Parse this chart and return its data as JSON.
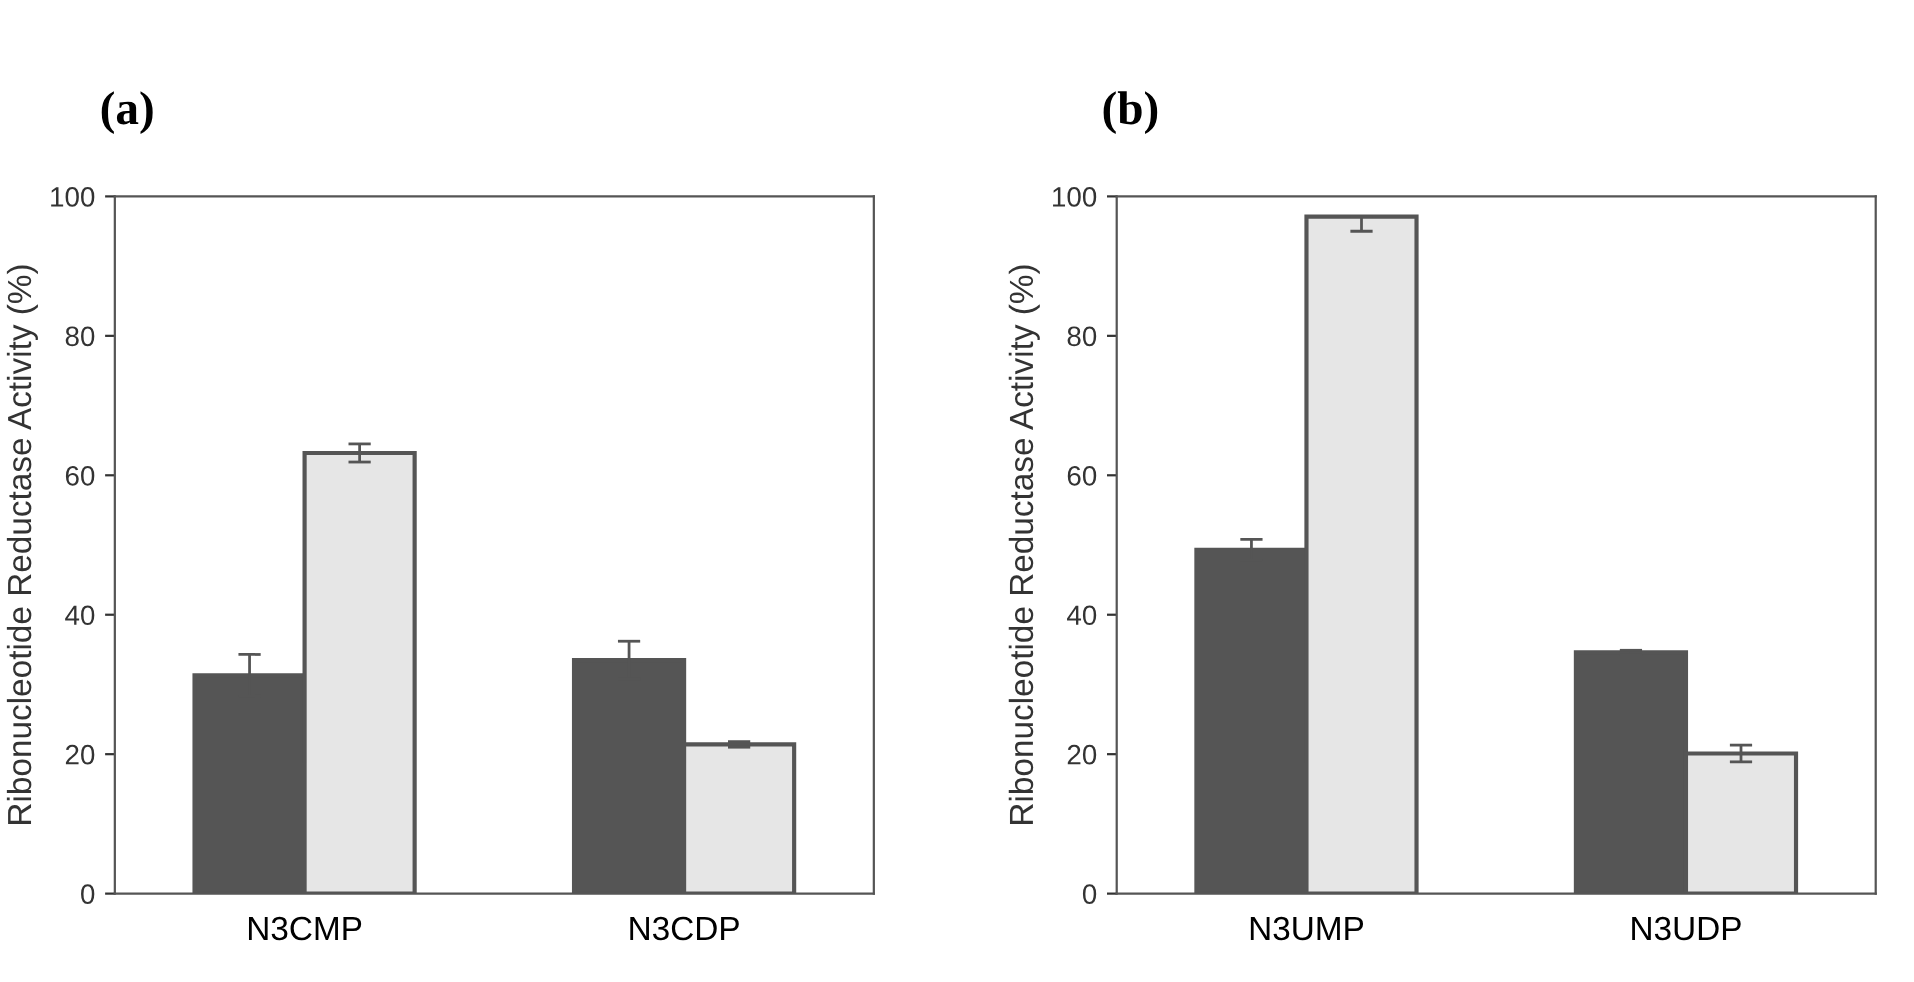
{
  "chart_data": [
    {
      "type": "bar",
      "title": "(a)",
      "ylabel": "Ribonucleotide Reductase Activity (%)",
      "categories": [
        "N3CMP",
        "N3CDP"
      ],
      "ylim": [
        0,
        100
      ],
      "yticks": [
        0,
        20,
        40,
        60,
        80,
        100
      ],
      "grid": false,
      "legend": false,
      "series": [
        {
          "color": "#555555",
          "values": [
            31.3,
            33.5
          ],
          "errors": [
            3,
            2.7
          ]
        },
        {
          "color": "#e6e6e6",
          "values": [
            63.2,
            21.4
          ],
          "errors": [
            1.3,
            0.4
          ]
        }
      ]
    },
    {
      "type": "bar",
      "title": "(b)",
      "ylabel": "Ribonucleotide Reductase Activity (%)",
      "categories": [
        "N3UMP",
        "N3UDP"
      ],
      "ylim": [
        0,
        100
      ],
      "yticks": [
        0,
        20,
        40,
        60,
        80,
        100
      ],
      "grid": false,
      "legend": false,
      "series": [
        {
          "color": "#555555",
          "values": [
            49.3,
            34.6
          ],
          "errors": [
            1.5,
            0.3
          ]
        },
        {
          "color": "#e6e6e6",
          "values": [
            97.1,
            20.1
          ],
          "errors": [
            [
              95,
              97.1
            ],
            1.2
          ]
        }
      ]
    }
  ]
}
